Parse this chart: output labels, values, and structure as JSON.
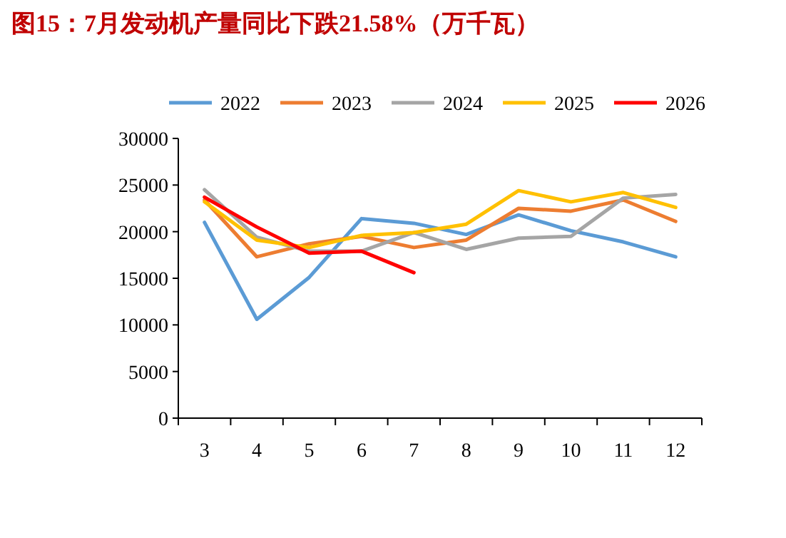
{
  "chart_data": {
    "type": "line",
    "title": "图15：7月发动机产量同比下跌21.58%（万千瓦）",
    "categories": [
      "3",
      "4",
      "5",
      "6",
      "7",
      "8",
      "9",
      "10",
      "11",
      "12"
    ],
    "series": [
      {
        "name": "2022",
        "color": "#5b9bd5",
        "values": [
          21000,
          10600,
          15100,
          21400,
          20900,
          19700,
          21800,
          20100,
          18900,
          17300
        ]
      },
      {
        "name": "2023",
        "color": "#ed7d31",
        "values": [
          23400,
          17300,
          18700,
          19500,
          18300,
          19100,
          22500,
          22200,
          23400,
          21100
        ]
      },
      {
        "name": "2024",
        "color": "#a5a5a5",
        "values": [
          24500,
          19400,
          17900,
          17900,
          19900,
          18100,
          19300,
          19500,
          23600,
          24000
        ]
      },
      {
        "name": "2025",
        "color": "#ffc000",
        "values": [
          23200,
          19100,
          18300,
          19600,
          19900,
          20800,
          24400,
          23200,
          24200,
          22600
        ]
      },
      {
        "name": "2026",
        "color": "#ff0000",
        "values": [
          23700,
          20500,
          17700,
          17900,
          15600,
          null,
          null,
          null,
          null,
          null
        ]
      }
    ],
    "ylim": [
      0,
      30000
    ],
    "yticks": [
      0,
      5000,
      10000,
      15000,
      20000,
      25000,
      30000
    ],
    "legend": "top",
    "grid": false,
    "marker": "none",
    "line_style": "solid"
  }
}
